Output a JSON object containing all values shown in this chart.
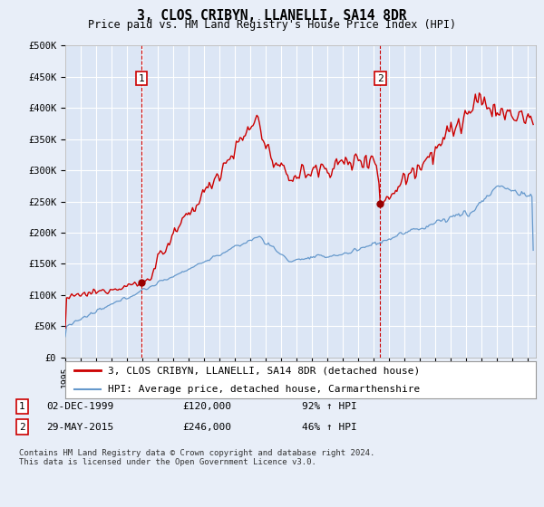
{
  "title": "3, CLOS CRIBYN, LLANELLI, SA14 8DR",
  "subtitle": "Price paid vs. HM Land Registry's House Price Index (HPI)",
  "background_color": "#e8eef8",
  "plot_bg_color": "#dce6f5",
  "grid_color": "#ffffff",
  "xmin": 1995.0,
  "xmax": 2025.5,
  "ymin": 0,
  "ymax": 500000,
  "yticks": [
    0,
    50000,
    100000,
    150000,
    200000,
    250000,
    300000,
    350000,
    400000,
    450000,
    500000
  ],
  "ytick_labels": [
    "£0",
    "£50K",
    "£100K",
    "£150K",
    "£200K",
    "£250K",
    "£300K",
    "£350K",
    "£400K",
    "£450K",
    "£500K"
  ],
  "sale1_x": 1999.92,
  "sale1_y": 120000,
  "sale1_label": "1",
  "sale2_x": 2015.42,
  "sale2_y": 246000,
  "sale2_label": "2",
  "legend_line1": "3, CLOS CRIBYN, LLANELLI, SA14 8DR (detached house)",
  "legend_line2": "HPI: Average price, detached house, Carmarthenshire",
  "table_row1": [
    "1",
    "02-DEC-1999",
    "£120,000",
    "92% ↑ HPI"
  ],
  "table_row2": [
    "2",
    "29-MAY-2015",
    "£246,000",
    "46% ↑ HPI"
  ],
  "footer": "Contains HM Land Registry data © Crown copyright and database right 2024.\nThis data is licensed under the Open Government Licence v3.0.",
  "line_red_color": "#cc0000",
  "line_blue_color": "#6699cc",
  "sale_dot_color": "#990000",
  "vline_color": "#cc0000",
  "box_color": "#cc0000"
}
